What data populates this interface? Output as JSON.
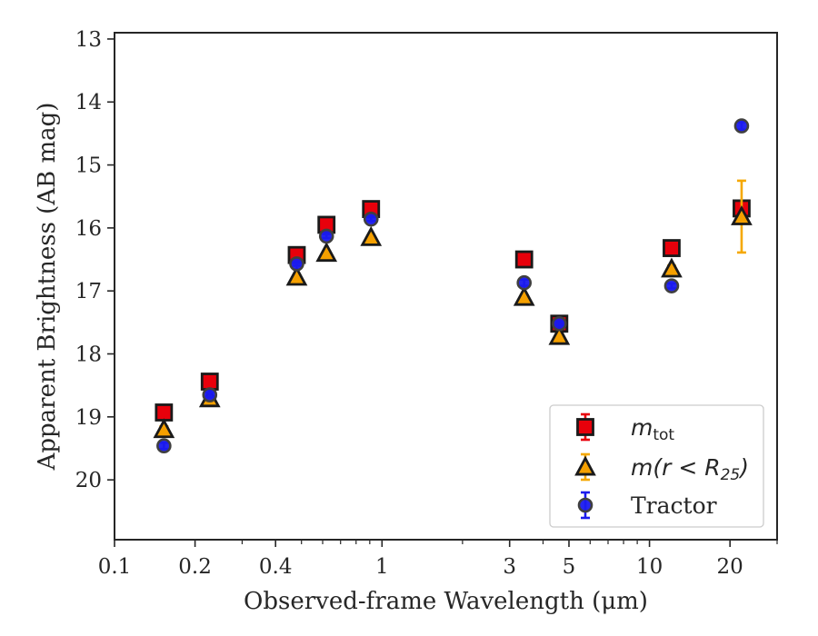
{
  "chart_data": {
    "type": "scatter",
    "title": "",
    "xlabel": "Observed-frame Wavelength (μm)",
    "ylabel": "Apparent Brightness (AB mag)",
    "xscale": "log",
    "xlim": [
      0.1,
      30
    ],
    "ylim": [
      20.95,
      12.9
    ],
    "y_inverted": true,
    "x_ticks": [
      {
        "value": 0.1,
        "label": "0.1"
      },
      {
        "value": 0.2,
        "label": "0.2"
      },
      {
        "value": 0.4,
        "label": "0.4"
      },
      {
        "value": 1,
        "label": "1"
      },
      {
        "value": 3,
        "label": "3"
      },
      {
        "value": 5,
        "label": "5"
      },
      {
        "value": 10,
        "label": "10"
      },
      {
        "value": 20,
        "label": "20"
      }
    ],
    "y_ticks": [
      13,
      14,
      15,
      16,
      17,
      18,
      19,
      20
    ],
    "legend_position": "lower right",
    "grid": false,
    "series": [
      {
        "name": "m_tot",
        "marker": "square",
        "color": "#e8000b",
        "edge": "#1a1a1a",
        "errcolor": "#e8000b",
        "points": [
          {
            "x": 0.153,
            "y": 18.93,
            "err": 0.05
          },
          {
            "x": 0.227,
            "y": 18.44,
            "err": 0.04
          },
          {
            "x": 0.48,
            "y": 16.43,
            "err": 0.03
          },
          {
            "x": 0.62,
            "y": 15.95,
            "err": 0.03
          },
          {
            "x": 0.91,
            "y": 15.7,
            "err": 0.03
          },
          {
            "x": 3.4,
            "y": 16.5,
            "err": 0.03
          },
          {
            "x": 4.6,
            "y": 17.52,
            "err": 0.03
          },
          {
            "x": 12.1,
            "y": 16.32,
            "err": 0.04
          },
          {
            "x": 22.1,
            "y": 15.69,
            "err": 0.04
          }
        ]
      },
      {
        "name": "m(r < R25)",
        "marker": "triangle",
        "color": "#f5a000",
        "edge": "#1a1a1a",
        "errcolor": "#f5a800",
        "points": [
          {
            "x": 0.153,
            "y": 19.2,
            "err": 0.05
          },
          {
            "x": 0.227,
            "y": 18.71,
            "err": 0.04
          },
          {
            "x": 0.48,
            "y": 16.78,
            "err": 0.03
          },
          {
            "x": 0.62,
            "y": 16.4,
            "err": 0.03
          },
          {
            "x": 0.91,
            "y": 16.15,
            "err": 0.03
          },
          {
            "x": 3.4,
            "y": 17.1,
            "err": 0.03
          },
          {
            "x": 4.6,
            "y": 17.72,
            "err": 0.03
          },
          {
            "x": 12.1,
            "y": 16.65,
            "err": 0.05
          },
          {
            "x": 22.1,
            "y": 15.82,
            "err": 0.57
          }
        ]
      },
      {
        "name": "Tractor",
        "marker": "circle",
        "color": "#1a1aee",
        "edge": "#404040",
        "errcolor": "#1a1aee",
        "points": [
          {
            "x": 0.153,
            "y": 19.46,
            "err": 0.05
          },
          {
            "x": 0.227,
            "y": 18.65,
            "err": 0.04
          },
          {
            "x": 0.48,
            "y": 16.57,
            "err": 0.03
          },
          {
            "x": 0.62,
            "y": 16.13,
            "err": 0.03
          },
          {
            "x": 0.91,
            "y": 15.86,
            "err": 0.03
          },
          {
            "x": 3.4,
            "y": 16.87,
            "err": 0.05
          },
          {
            "x": 4.6,
            "y": 17.52,
            "err": 0.03
          },
          {
            "x": 12.1,
            "y": 16.92,
            "err": 0.04
          },
          {
            "x": 22.1,
            "y": 14.38,
            "err": 0.06
          }
        ]
      }
    ]
  },
  "legend": {
    "entries": [
      {
        "main": "m",
        "sub": "tot",
        "italic_main": true
      },
      {
        "main": "m(r < R",
        "sub": "25",
        "suffix": ")",
        "italic_main": true
      },
      {
        "main": "Tractor",
        "sub": "",
        "italic_main": false
      }
    ]
  }
}
